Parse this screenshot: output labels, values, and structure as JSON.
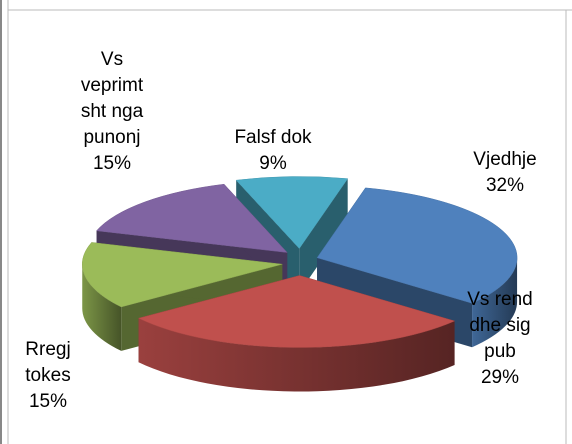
{
  "chart_data": {
    "type": "pie3d",
    "categories": [
      "Vjedhje",
      "Vs rend dhe sig pub",
      "Rregj tokes",
      "Vs veprimt sht nga punonj",
      "Falsf dok"
    ],
    "values": [
      32,
      29,
      15,
      15,
      9
    ],
    "value_labels": [
      "32%",
      "29%",
      "15%",
      "15%",
      "9%"
    ],
    "colors": [
      "#4f81bd",
      "#c0504d",
      "#9bbb59",
      "#8064a2",
      "#4bacc6"
    ]
  }
}
